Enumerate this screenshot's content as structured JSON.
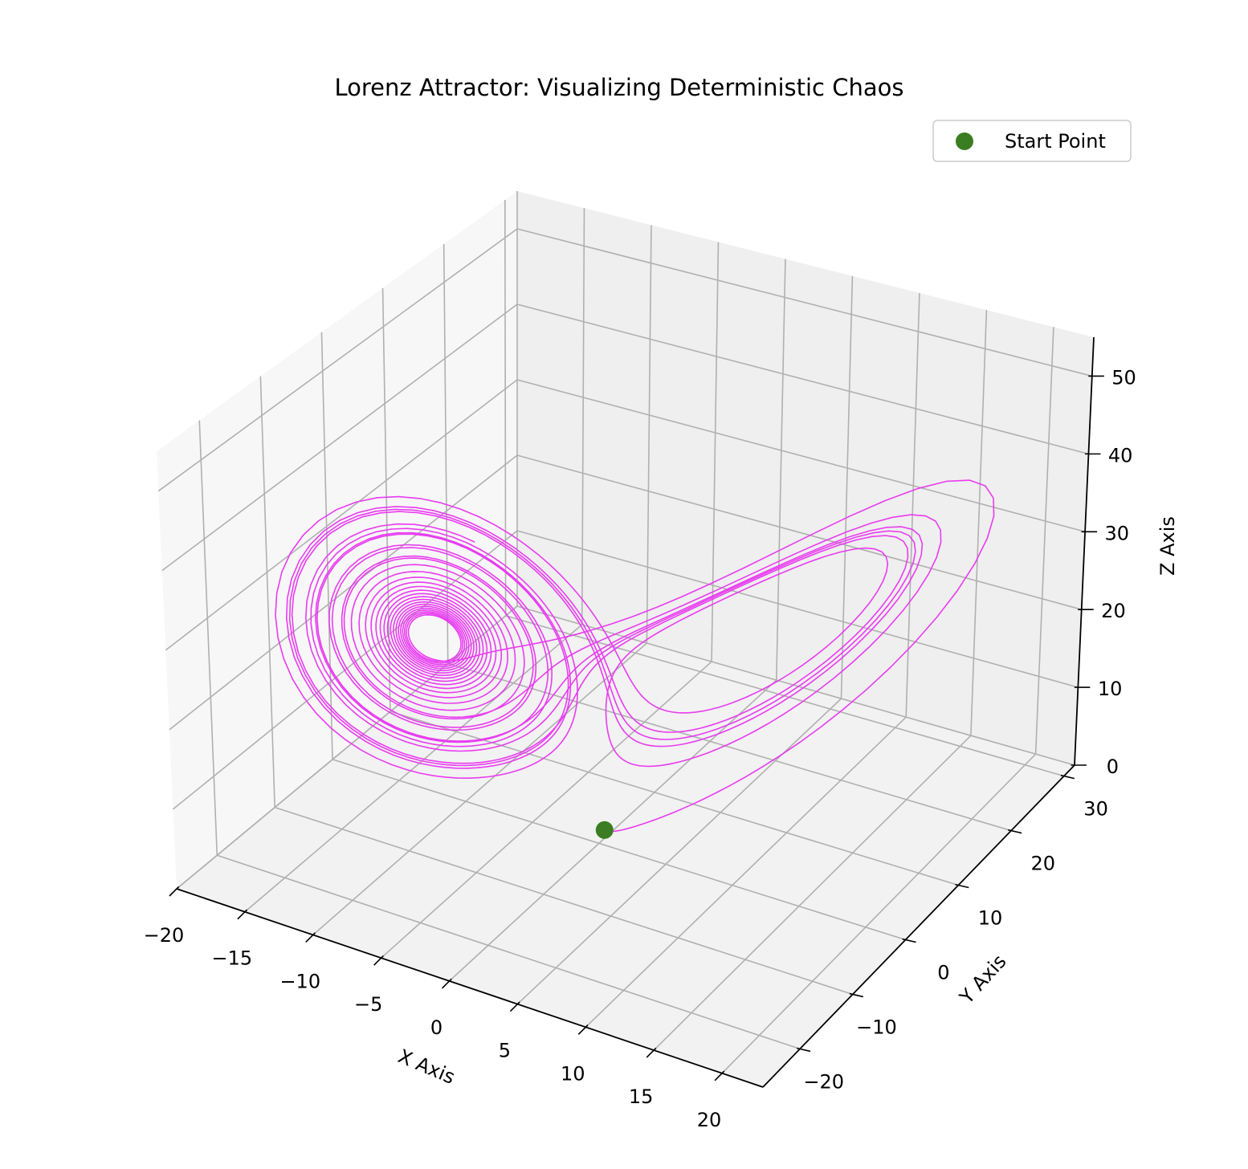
{
  "chart_data": {
    "type": "line3d",
    "title": "Lorenz Attractor: Visualizing Deterministic Chaos",
    "xlabel": "X Axis",
    "ylabel": "Y Axis",
    "zlabel": "Z Axis",
    "xlim": [
      -20,
      23
    ],
    "ylim": [
      -27,
      32
    ],
    "zlim": [
      0,
      55
    ],
    "xticks": [
      -20,
      -15,
      -10,
      -5,
      0,
      5,
      10,
      15,
      20
    ],
    "xtick_labels": [
      "−20",
      "−15",
      "−10",
      "−5",
      "0",
      "5",
      "10",
      "15",
      "20"
    ],
    "yticks": [
      -20,
      -10,
      0,
      10,
      20,
      30
    ],
    "ytick_labels": [
      "−20",
      "−10",
      "0",
      "10",
      "20",
      "30"
    ],
    "zticks": [
      0,
      10,
      20,
      30,
      40,
      50
    ],
    "ztick_labels": [
      "0",
      "10",
      "20",
      "30",
      "40",
      "50"
    ],
    "grid": true,
    "legend_position": "top-right",
    "series": [
      {
        "kind": "line",
        "color": "#e83cf0",
        "system": "lorenz",
        "parameters": {
          "sigma": 10,
          "rho": 28,
          "beta": 2.667
        },
        "initial_point": [
          0,
          1,
          1.05
        ]
      },
      {
        "kind": "scatter",
        "name": "Start Point",
        "color": "#3a7d22",
        "points": [
          [
            0,
            1,
            1.05
          ]
        ]
      }
    ]
  }
}
